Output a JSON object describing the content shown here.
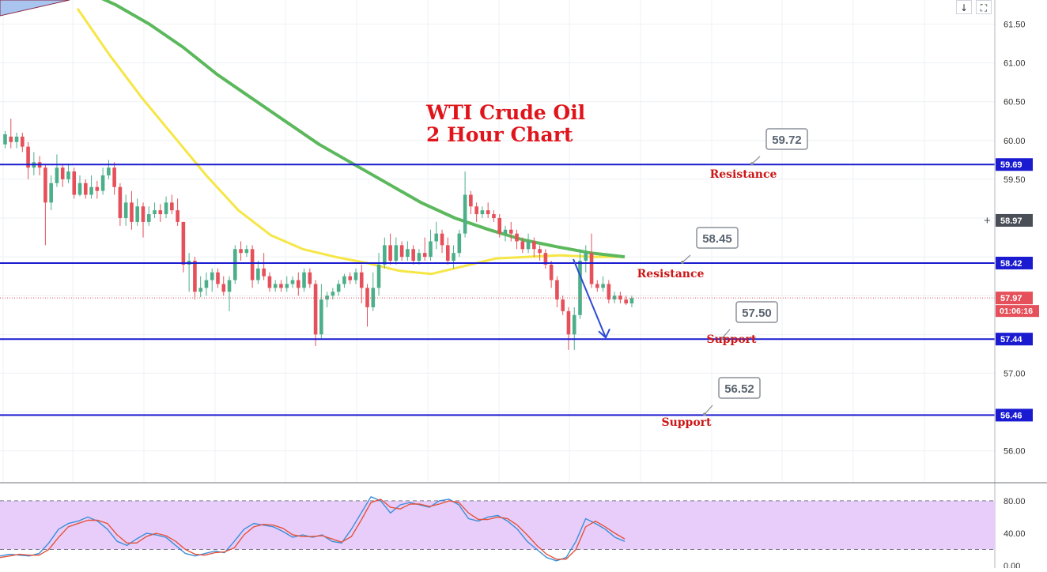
{
  "toolbar": {
    "down_icon": "↓",
    "fullscreen_icon": "⛶"
  },
  "chart_data": [
    {
      "type": "candlestick",
      "title": "WTI Crude Oil",
      "subtitle": "2 Hour Chart",
      "ylim": [
        55.45,
        61.85
      ],
      "ticks": [
        "56.00",
        "57.00",
        "58.00",
        "59.50",
        "60.00",
        "60.50",
        "61.00",
        "61.50"
      ],
      "tick_values": [
        56.0,
        57.0,
        58.0,
        59.5,
        60.0,
        60.5,
        61.0,
        61.5
      ],
      "crosshair_price": "58.97",
      "crosshair_value": 58.97,
      "last_price": "57.97",
      "last_value": 57.97,
      "countdown": "01:06:16",
      "levels": [
        {
          "value": 59.69,
          "label": "59.69",
          "callout": "59.72",
          "name": "Resistance"
        },
        {
          "value": 58.42,
          "label": "58.42",
          "callout": "58.45",
          "name": "Resistance"
        },
        {
          "value": 57.44,
          "label": "57.44",
          "callout": "57.50",
          "name": "Support"
        },
        {
          "value": 56.46,
          "label": "56.46",
          "callout": "56.52",
          "name": "Support"
        }
      ],
      "candles": [
        [
          59.95,
          60.08,
          60.12,
          59.9
        ],
        [
          60.05,
          59.98,
          60.28,
          59.9
        ],
        [
          59.98,
          60.05,
          60.1,
          59.9
        ],
        [
          60.05,
          59.92,
          60.1,
          59.85
        ],
        [
          59.92,
          59.65,
          59.98,
          59.5
        ],
        [
          59.65,
          59.72,
          59.85,
          59.55
        ],
        [
          59.72,
          59.65,
          59.8,
          59.55
        ],
        [
          59.65,
          59.2,
          59.7,
          58.65
        ],
        [
          59.2,
          59.45,
          59.55,
          59.1
        ],
        [
          59.45,
          59.65,
          59.82,
          59.4
        ],
        [
          59.65,
          59.5,
          59.7,
          59.4
        ],
        [
          59.5,
          59.6,
          59.7,
          59.45
        ],
        [
          59.6,
          59.3,
          59.65,
          59.25
        ],
        [
          59.3,
          59.45,
          59.55,
          59.28
        ],
        [
          59.45,
          59.3,
          59.5,
          59.25
        ],
        [
          59.3,
          59.4,
          59.55,
          59.25
        ],
        [
          59.4,
          59.35,
          59.48,
          59.25
        ],
        [
          59.35,
          59.55,
          59.65,
          59.3
        ],
        [
          59.55,
          59.65,
          59.75,
          59.5
        ],
        [
          59.65,
          59.4,
          59.72,
          59.3
        ],
        [
          59.4,
          59.0,
          59.45,
          58.9
        ],
        [
          59.0,
          59.2,
          59.3,
          58.9
        ],
        [
          59.2,
          58.95,
          59.35,
          58.85
        ],
        [
          58.95,
          59.15,
          59.25,
          58.9
        ],
        [
          59.15,
          58.95,
          59.2,
          58.75
        ],
        [
          58.95,
          59.05,
          59.15,
          58.9
        ],
        [
          59.05,
          59.1,
          59.2,
          59.0
        ],
        [
          59.1,
          59.05,
          59.18,
          58.95
        ],
        [
          59.05,
          59.2,
          59.28,
          59.0
        ],
        [
          59.2,
          59.1,
          59.3,
          59.05
        ],
        [
          59.1,
          58.95,
          59.25,
          58.9
        ],
        [
          58.95,
          58.4,
          58.95,
          58.3
        ],
        [
          58.4,
          58.45,
          58.55,
          58.05
        ],
        [
          58.45,
          58.05,
          58.5,
          57.95
        ],
        [
          58.05,
          58.1,
          58.25,
          57.98
        ],
        [
          58.1,
          58.2,
          58.3,
          58.0
        ],
        [
          58.2,
          58.3,
          58.35,
          58.05
        ],
        [
          58.3,
          58.15,
          58.35,
          58.1
        ],
        [
          58.15,
          58.05,
          58.25,
          58.0
        ],
        [
          58.05,
          58.2,
          58.25,
          57.8
        ],
        [
          58.2,
          58.6,
          58.65,
          58.15
        ],
        [
          58.6,
          58.55,
          58.7,
          58.45
        ],
        [
          58.55,
          58.6,
          58.65,
          58.5
        ],
        [
          58.6,
          58.2,
          58.65,
          58.1
        ],
        [
          58.2,
          58.35,
          58.45,
          58.15
        ],
        [
          58.35,
          58.25,
          58.55,
          58.2
        ],
        [
          58.25,
          58.1,
          58.3,
          58.05
        ],
        [
          58.1,
          58.15,
          58.2,
          58.05
        ],
        [
          58.15,
          58.1,
          58.2,
          58.05
        ],
        [
          58.1,
          58.15,
          58.25,
          58.05
        ],
        [
          58.15,
          58.2,
          58.25,
          58.1
        ],
        [
          58.2,
          58.1,
          58.3,
          58.0
        ],
        [
          58.1,
          58.3,
          58.35,
          58.05
        ],
        [
          58.3,
          58.15,
          58.35,
          58.1
        ],
        [
          58.15,
          57.5,
          58.2,
          57.35
        ],
        [
          57.5,
          57.95,
          58.15,
          57.45
        ],
        [
          57.95,
          58.0,
          58.05,
          57.85
        ],
        [
          58.0,
          58.05,
          58.1,
          57.95
        ],
        [
          58.05,
          58.15,
          58.2,
          58.0
        ],
        [
          58.15,
          58.25,
          58.28,
          58.1
        ],
        [
          58.25,
          58.2,
          58.3,
          58.15
        ],
        [
          58.2,
          58.3,
          58.35,
          58.15
        ],
        [
          58.3,
          58.1,
          58.4,
          57.9
        ],
        [
          58.1,
          57.85,
          58.15,
          57.6
        ],
        [
          57.85,
          58.1,
          58.3,
          57.8
        ],
        [
          58.1,
          58.4,
          58.55,
          58.0
        ],
        [
          58.4,
          58.65,
          58.75,
          58.35
        ],
        [
          58.65,
          58.45,
          58.8,
          58.4
        ],
        [
          58.45,
          58.65,
          58.75,
          58.4
        ],
        [
          58.65,
          58.5,
          58.7,
          58.45
        ],
        [
          58.5,
          58.6,
          58.7,
          58.45
        ],
        [
          58.6,
          58.45,
          58.65,
          58.4
        ],
        [
          58.45,
          58.55,
          58.6,
          58.4
        ],
        [
          58.55,
          58.5,
          58.75,
          58.45
        ],
        [
          58.5,
          58.7,
          58.85,
          58.45
        ],
        [
          58.7,
          58.8,
          58.95,
          58.6
        ],
        [
          58.8,
          58.65,
          58.85,
          58.55
        ],
        [
          58.65,
          58.45,
          58.75,
          58.4
        ],
        [
          58.45,
          58.55,
          58.65,
          58.35
        ],
        [
          58.55,
          58.8,
          58.85,
          58.5
        ],
        [
          58.8,
          59.3,
          59.6,
          58.75
        ],
        [
          59.3,
          59.15,
          59.35,
          59.05
        ],
        [
          59.15,
          59.05,
          59.2,
          58.95
        ],
        [
          59.05,
          59.1,
          59.15,
          59.0
        ],
        [
          59.1,
          59.05,
          59.2,
          59.0
        ],
        [
          59.05,
          59.0,
          59.1,
          58.95
        ],
        [
          59.0,
          58.8,
          59.05,
          58.75
        ],
        [
          58.8,
          58.85,
          58.9,
          58.7
        ],
        [
          58.85,
          58.8,
          58.95,
          58.7
        ],
        [
          58.8,
          58.7,
          58.85,
          58.6
        ],
        [
          58.7,
          58.6,
          58.75,
          58.55
        ],
        [
          58.6,
          58.7,
          58.8,
          58.55
        ],
        [
          58.7,
          58.6,
          58.75,
          58.5
        ],
        [
          58.6,
          58.55,
          58.65,
          58.45
        ],
        [
          58.55,
          58.4,
          58.6,
          58.35
        ],
        [
          58.4,
          58.2,
          58.45,
          58.1
        ],
        [
          58.2,
          57.95,
          58.25,
          57.85
        ],
        [
          57.95,
          57.8,
          58.0,
          57.75
        ],
        [
          57.8,
          57.5,
          57.85,
          57.3
        ],
        [
          57.5,
          57.75,
          57.85,
          57.3
        ],
        [
          57.75,
          58.45,
          58.6,
          57.7
        ],
        [
          58.45,
          58.55,
          58.65,
          58.3
        ],
        [
          58.55,
          58.15,
          58.8,
          58.1
        ],
        [
          58.15,
          58.1,
          58.2,
          58.05
        ],
        [
          58.1,
          58.15,
          58.25,
          58.05
        ],
        [
          58.15,
          57.95,
          58.2,
          57.9
        ],
        [
          57.95,
          58.0,
          58.05,
          57.9
        ],
        [
          58.0,
          57.95,
          58.05,
          57.9
        ],
        [
          57.95,
          57.9,
          58.0,
          57.88
        ],
        [
          57.9,
          57.97,
          58.0,
          57.85
        ]
      ],
      "ma_green_points": [
        [
          0,
          0.4
        ],
        [
          0.35,
          0.9
        ],
        [
          1.5,
          1.3
        ],
        [
          2.5,
          2.5
        ],
        [
          3.4,
          4.1
        ],
        [
          4.7,
          7.2
        ],
        [
          5.85,
          11.0
        ],
        [
          6.83,
          15.9
        ],
        [
          8.3,
          22.3
        ],
        [
          9.2,
          27.0
        ],
        [
          10.4,
          34.0
        ],
        [
          11.6,
          42.0
        ],
        [
          13.1,
          50.0
        ],
        [
          14.8,
          58.0
        ],
        [
          16.3,
          66.0
        ],
        [
          18.0,
          75.0
        ],
        [
          19.4,
          81.0
        ],
        [
          20.7,
          86.0
        ],
        [
          21.7,
          90.2
        ],
        [
          22.9,
          93.2
        ],
        [
          24.0,
          98.0
        ],
        [
          25.3,
          101.7
        ],
        [
          26.6,
          106.2
        ]
      ],
      "ma_yellow_points": [
        [
          3.9,
          0
        ],
        [
          5.0,
          3.3
        ],
        [
          6.5,
          9.5
        ],
        [
          8.1,
          17.0
        ],
        [
          9.5,
          24.8
        ],
        [
          11.0,
          30.5
        ],
        [
          12.2,
          35.5
        ],
        [
          13.8,
          42.0
        ],
        [
          15.6,
          46.3
        ],
        [
          17.1,
          49.6
        ],
        [
          18.6,
          51.2
        ],
        [
          19.8,
          51.8
        ],
        [
          21.4,
          51.4
        ],
        [
          22.7,
          51.2
        ],
        [
          24.3,
          51.0
        ],
        [
          25.5,
          50.6
        ],
        [
          26.6,
          50.6
        ]
      ],
      "ma_green": [
        62.1,
        61.95,
        61.75,
        61.5,
        61.2,
        60.85,
        60.55,
        60.25,
        59.95,
        59.7,
        59.45,
        59.2,
        59.0,
        58.85,
        58.72,
        58.63,
        58.55,
        58.5
      ],
      "ma_yellow": [
        61.7,
        61.1,
        60.55,
        60.05,
        59.55,
        59.1,
        58.78,
        58.6,
        58.5,
        58.42,
        58.32,
        58.28,
        58.38,
        58.48,
        58.5,
        58.52,
        58.5,
        58.5
      ],
      "annotations": [
        {
          "type": "arrow",
          "from_price": 58.47,
          "to_price": 57.5,
          "color": "#2d4bd6"
        }
      ]
    },
    {
      "type": "line",
      "ylim": [
        0,
        100
      ],
      "ticks": [
        "0.00",
        "40.00",
        "80.00"
      ],
      "tick_values": [
        0,
        40,
        80
      ],
      "band": [
        20,
        80
      ],
      "series": [
        {
          "color": "#3a8fd8",
          "values": [
            12,
            14,
            13,
            12,
            15,
            28,
            45,
            52,
            55,
            60,
            55,
            45,
            30,
            25,
            33,
            40,
            38,
            35,
            25,
            15,
            12,
            15,
            18,
            16,
            30,
            45,
            52,
            50,
            48,
            42,
            35,
            38,
            35,
            38,
            30,
            28,
            45,
            65,
            85,
            80,
            65,
            75,
            78,
            75,
            72,
            80,
            82,
            75,
            58,
            55,
            60,
            62,
            55,
            45,
            30,
            20,
            10,
            6,
            10,
            30,
            58,
            52,
            45,
            35,
            30
          ]
        },
        {
          "color": "#e5533c",
          "values": [
            10,
            12,
            14,
            13,
            13,
            20,
            35,
            48,
            52,
            56,
            56,
            52,
            38,
            28,
            28,
            36,
            40,
            37,
            30,
            20,
            14,
            13,
            16,
            17,
            22,
            38,
            48,
            51,
            50,
            46,
            38,
            36,
            36,
            37,
            33,
            29,
            36,
            56,
            78,
            82,
            72,
            70,
            76,
            76,
            73,
            76,
            80,
            78,
            65,
            57,
            57,
            60,
            58,
            50,
            38,
            25,
            14,
            8,
            8,
            20,
            48,
            55,
            48,
            40,
            33
          ]
        }
      ]
    }
  ]
}
